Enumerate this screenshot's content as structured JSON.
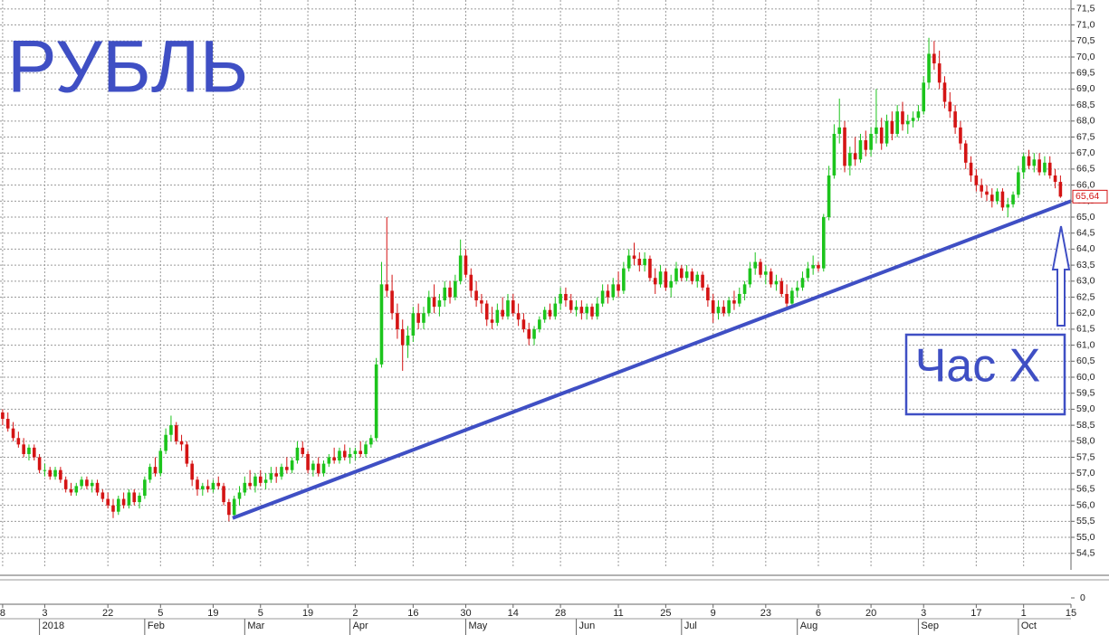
{
  "chart_data": {
    "type": "candlestick",
    "title": "РУБЛЬ",
    "annotation": "Час X",
    "up_color": "#1cc41c",
    "down_color": "#d41414",
    "line_color": "#3f4fc4",
    "grid": true,
    "last_price": {
      "value": 65.64,
      "label": "65,64"
    },
    "trendline": {
      "x": [
        43.7,
        203
      ],
      "values": [
        55.6,
        65.5
      ]
    },
    "xlim": [
      -0.5,
      203
    ],
    "ylim": [
      54.04,
      71.78
    ],
    "yticks": [
      {
        "value": 54.5,
        "label": "54,5"
      },
      {
        "value": 55,
        "label": "55,0"
      },
      {
        "value": 55.5,
        "label": "55,5"
      },
      {
        "value": 56,
        "label": "56,0"
      },
      {
        "value": 56.5,
        "label": "56,5"
      },
      {
        "value": 57,
        "label": "57,0"
      },
      {
        "value": 57.5,
        "label": "57,5"
      },
      {
        "value": 58,
        "label": "58,0"
      },
      {
        "value": 58.5,
        "label": "58,5"
      },
      {
        "value": 59,
        "label": "59,0"
      },
      {
        "value": 59.5,
        "label": "59,5"
      },
      {
        "value": 60,
        "label": "60,0"
      },
      {
        "value": 60.5,
        "label": "60,5"
      },
      {
        "value": 61,
        "label": "61,0"
      },
      {
        "value": 61.5,
        "label": "61,5"
      },
      {
        "value": 62,
        "label": "62,0"
      },
      {
        "value": 62.5,
        "label": "62,5"
      },
      {
        "value": 63,
        "label": "63,0"
      },
      {
        "value": 63.5,
        "label": "63,5"
      },
      {
        "value": 64,
        "label": "64,0"
      },
      {
        "value": 64.5,
        "label": "64,5"
      },
      {
        "value": 65,
        "label": "65,0"
      },
      {
        "value": 65.5,
        "label": "65,5"
      },
      {
        "value": 66,
        "label": "66,0"
      },
      {
        "value": 66.5,
        "label": "66,5"
      },
      {
        "value": 67,
        "label": "67,0"
      },
      {
        "value": 67.5,
        "label": "67,5"
      },
      {
        "value": 68,
        "label": "68,0"
      },
      {
        "value": 68.5,
        "label": "68,5"
      },
      {
        "value": 69,
        "label": "69,0"
      },
      {
        "value": 69.5,
        "label": "69,5"
      },
      {
        "value": 70,
        "label": "70,0"
      },
      {
        "value": 70.5,
        "label": "70,5"
      },
      {
        "value": 71,
        "label": "71,0"
      },
      {
        "value": 71.5,
        "label": "71,5"
      }
    ],
    "volume_yticks": [
      0
    ],
    "xticks": [
      {
        "value": 0,
        "label": "8"
      },
      {
        "value": 8,
        "label": "3"
      },
      {
        "value": 20,
        "label": "22"
      },
      {
        "value": 30,
        "label": "5"
      },
      {
        "value": 40,
        "label": "19"
      },
      {
        "value": 49,
        "label": "5"
      },
      {
        "value": 58,
        "label": "19"
      },
      {
        "value": 67,
        "label": "2"
      },
      {
        "value": 78,
        "label": "16"
      },
      {
        "value": 88,
        "label": "30"
      },
      {
        "value": 97,
        "label": "14"
      },
      {
        "value": 106,
        "label": "28"
      },
      {
        "value": 117,
        "label": "11"
      },
      {
        "value": 126,
        "label": "25"
      },
      {
        "value": 135,
        "label": "9"
      },
      {
        "value": 145,
        "label": "23"
      },
      {
        "value": 155,
        "label": "6"
      },
      {
        "value": 165,
        "label": "20"
      },
      {
        "value": 175,
        "label": "3"
      },
      {
        "value": 185,
        "label": "17"
      },
      {
        "value": 194,
        "label": "1"
      },
      {
        "value": 203,
        "label": "15"
      }
    ],
    "month_ticks": [
      {
        "value": 7,
        "label": "2018"
      },
      {
        "value": 27,
        "label": "Feb"
      },
      {
        "value": 46,
        "label": "Mar"
      },
      {
        "value": 66,
        "label": "Apr"
      },
      {
        "value": 88,
        "label": "May"
      },
      {
        "value": 109,
        "label": "Jun"
      },
      {
        "value": 129,
        "label": "Jul"
      },
      {
        "value": 151,
        "label": "Aug"
      },
      {
        "value": 174,
        "label": "Sep"
      },
      {
        "value": 193,
        "label": "Oct"
      }
    ],
    "candles": [
      [
        58.9,
        59.0,
        58.5,
        58.7
      ],
      [
        58.7,
        58.9,
        58.3,
        58.4
      ],
      [
        58.4,
        58.6,
        58.0,
        58.1
      ],
      [
        58.1,
        58.3,
        57.8,
        57.9
      ],
      [
        57.9,
        58.1,
        57.5,
        57.6
      ],
      [
        57.6,
        57.9,
        57.4,
        57.8
      ],
      [
        57.8,
        57.9,
        57.4,
        57.5
      ],
      [
        57.5,
        57.6,
        57.0,
        57.1
      ],
      [
        57.1,
        57.3,
        56.9,
        57.1
      ],
      [
        57.1,
        57.2,
        56.8,
        56.9
      ],
      [
        56.9,
        57.2,
        56.8,
        57.1
      ],
      [
        57.1,
        57.2,
        56.7,
        56.8
      ],
      [
        56.8,
        56.9,
        56.4,
        56.5
      ],
      [
        56.5,
        56.7,
        56.3,
        56.4
      ],
      [
        56.4,
        56.7,
        56.3,
        56.6
      ],
      [
        56.6,
        56.9,
        56.5,
        56.8
      ],
      [
        56.8,
        56.9,
        56.5,
        56.6
      ],
      [
        56.6,
        56.8,
        56.4,
        56.7
      ],
      [
        56.7,
        56.8,
        56.3,
        56.4
      ],
      [
        56.4,
        56.5,
        56.1,
        56.2
      ],
      [
        56.2,
        56.4,
        55.9,
        56.0
      ],
      [
        56.0,
        56.2,
        55.6,
        55.8
      ],
      [
        55.8,
        56.3,
        55.7,
        56.2
      ],
      [
        56.2,
        56.4,
        55.9,
        56.0
      ],
      [
        56.0,
        56.5,
        55.9,
        56.4
      ],
      [
        56.4,
        56.5,
        56.0,
        56.1
      ],
      [
        56.1,
        56.4,
        55.9,
        56.3
      ],
      [
        56.3,
        56.9,
        56.2,
        56.8
      ],
      [
        56.8,
        57.3,
        56.7,
        57.2
      ],
      [
        57.2,
        57.5,
        56.9,
        57.0
      ],
      [
        57.0,
        57.8,
        56.9,
        57.7
      ],
      [
        57.7,
        58.4,
        57.6,
        58.2
      ],
      [
        58.2,
        58.8,
        58.0,
        58.5
      ],
      [
        58.5,
        58.6,
        57.9,
        58.0
      ],
      [
        58.0,
        58.2,
        57.7,
        57.9
      ],
      [
        57.9,
        58.0,
        57.2,
        57.3
      ],
      [
        57.3,
        57.4,
        56.6,
        56.8
      ],
      [
        56.8,
        56.9,
        56.3,
        56.5
      ],
      [
        56.5,
        56.7,
        56.3,
        56.6
      ],
      [
        56.6,
        56.8,
        56.4,
        56.5
      ],
      [
        56.5,
        56.8,
        56.4,
        56.7
      ],
      [
        56.7,
        56.9,
        56.5,
        56.6
      ],
      [
        56.6,
        56.7,
        56.0,
        56.1
      ],
      [
        56.1,
        56.2,
        55.5,
        55.7
      ],
      [
        55.7,
        56.3,
        55.6,
        56.2
      ],
      [
        56.2,
        56.6,
        56.0,
        56.4
      ],
      [
        56.4,
        56.9,
        56.3,
        56.7
      ],
      [
        56.7,
        57.1,
        56.5,
        56.6
      ],
      [
        56.6,
        57.0,
        56.4,
        56.9
      ],
      [
        56.9,
        57.1,
        56.6,
        56.7
      ],
      [
        56.7,
        57.0,
        56.5,
        56.8
      ],
      [
        56.8,
        57.2,
        56.7,
        57.0
      ],
      [
        57.0,
        57.2,
        56.7,
        56.9
      ],
      [
        56.9,
        57.3,
        56.8,
        57.2
      ],
      [
        57.2,
        57.5,
        57.0,
        57.1
      ],
      [
        57.1,
        57.5,
        57.0,
        57.4
      ],
      [
        57.4,
        58.0,
        57.3,
        57.8
      ],
      [
        57.8,
        58.0,
        57.5,
        57.6
      ],
      [
        57.6,
        57.7,
        57.0,
        57.1
      ],
      [
        57.1,
        57.4,
        56.9,
        57.3
      ],
      [
        57.3,
        57.5,
        56.9,
        57.0
      ],
      [
        57.0,
        57.4,
        56.9,
        57.3
      ],
      [
        57.3,
        57.6,
        57.2,
        57.5
      ],
      [
        57.5,
        57.8,
        57.3,
        57.4
      ],
      [
        57.4,
        57.8,
        57.3,
        57.7
      ],
      [
        57.7,
        57.9,
        57.4,
        57.5
      ],
      [
        57.5,
        57.8,
        57.3,
        57.6
      ],
      [
        57.6,
        57.8,
        57.4,
        57.7
      ],
      [
        57.7,
        58.0,
        57.5,
        57.6
      ],
      [
        57.6,
        58.0,
        57.5,
        57.9
      ],
      [
        57.9,
        58.2,
        57.8,
        58.1
      ],
      [
        58.1,
        60.6,
        58.0,
        60.4
      ],
      [
        60.4,
        63.6,
        60.3,
        62.9
      ],
      [
        62.9,
        65.0,
        62.5,
        62.7
      ],
      [
        62.7,
        63.2,
        61.8,
        62.0
      ],
      [
        62.0,
        62.3,
        61.2,
        61.5
      ],
      [
        61.5,
        61.8,
        60.2,
        61.0
      ],
      [
        61.0,
        61.6,
        60.6,
        61.3
      ],
      [
        61.3,
        62.2,
        61.1,
        62.0
      ],
      [
        62.0,
        62.3,
        61.5,
        61.7
      ],
      [
        61.7,
        62.2,
        61.5,
        62.0
      ],
      [
        62.0,
        62.7,
        61.9,
        62.5
      ],
      [
        62.5,
        62.9,
        62.0,
        62.2
      ],
      [
        62.2,
        62.6,
        61.9,
        62.4
      ],
      [
        62.4,
        63.0,
        62.2,
        62.8
      ],
      [
        62.8,
        63.0,
        62.3,
        62.5
      ],
      [
        62.5,
        63.2,
        62.4,
        63.0
      ],
      [
        63.0,
        64.3,
        62.9,
        63.8
      ],
      [
        63.8,
        64.0,
        63.1,
        63.2
      ],
      [
        63.2,
        63.4,
        62.5,
        62.7
      ],
      [
        62.7,
        63.0,
        62.2,
        62.4
      ],
      [
        62.4,
        62.6,
        62.0,
        62.3
      ],
      [
        62.3,
        62.4,
        61.6,
        61.8
      ],
      [
        61.8,
        62.2,
        61.5,
        61.7
      ],
      [
        61.7,
        62.3,
        61.6,
        62.1
      ],
      [
        62.1,
        62.5,
        61.8,
        61.9
      ],
      [
        61.9,
        62.6,
        61.8,
        62.4
      ],
      [
        62.4,
        62.6,
        61.9,
        62.0
      ],
      [
        62.0,
        62.3,
        61.6,
        61.8
      ],
      [
        61.8,
        62.0,
        61.4,
        61.5
      ],
      [
        61.5,
        61.7,
        61.0,
        61.2
      ],
      [
        61.2,
        61.6,
        61.0,
        61.5
      ],
      [
        61.5,
        61.9,
        61.4,
        61.8
      ],
      [
        61.8,
        62.2,
        61.7,
        62.1
      ],
      [
        62.1,
        62.3,
        61.8,
        61.9
      ],
      [
        61.9,
        62.5,
        61.8,
        62.3
      ],
      [
        62.3,
        62.8,
        62.1,
        62.6
      ],
      [
        62.6,
        62.8,
        62.2,
        62.4
      ],
      [
        62.4,
        62.6,
        62.0,
        62.1
      ],
      [
        62.1,
        62.4,
        61.9,
        62.2
      ],
      [
        62.2,
        62.4,
        61.8,
        62.0
      ],
      [
        62.0,
        62.3,
        61.8,
        62.2
      ],
      [
        62.2,
        62.3,
        61.8,
        61.9
      ],
      [
        61.9,
        62.5,
        61.8,
        62.3
      ],
      [
        62.3,
        62.9,
        62.2,
        62.7
      ],
      [
        62.7,
        62.9,
        62.3,
        62.5
      ],
      [
        62.5,
        63.1,
        62.4,
        62.9
      ],
      [
        62.9,
        63.3,
        62.5,
        62.7
      ],
      [
        62.7,
        63.6,
        62.6,
        63.4
      ],
      [
        63.4,
        64.0,
        63.3,
        63.8
      ],
      [
        63.8,
        64.2,
        63.5,
        63.7
      ],
      [
        63.7,
        63.9,
        63.3,
        63.5
      ],
      [
        63.5,
        63.9,
        63.3,
        63.7
      ],
      [
        63.7,
        63.8,
        63.0,
        63.1
      ],
      [
        63.1,
        63.4,
        62.6,
        62.9
      ],
      [
        62.9,
        63.5,
        62.8,
        63.3
      ],
      [
        63.3,
        63.4,
        62.7,
        62.8
      ],
      [
        62.8,
        63.2,
        62.5,
        63.0
      ],
      [
        63.0,
        63.6,
        62.9,
        63.4
      ],
      [
        63.4,
        63.5,
        63.0,
        63.1
      ],
      [
        63.1,
        63.5,
        63.0,
        63.3
      ],
      [
        63.3,
        63.4,
        62.9,
        63.0
      ],
      [
        63.0,
        63.3,
        62.8,
        63.2
      ],
      [
        63.2,
        63.3,
        62.7,
        62.8
      ],
      [
        62.8,
        62.9,
        62.2,
        62.4
      ],
      [
        62.4,
        62.6,
        61.7,
        62.0
      ],
      [
        62.0,
        62.4,
        61.8,
        62.2
      ],
      [
        62.2,
        62.4,
        61.9,
        62.0
      ],
      [
        62.0,
        62.5,
        61.9,
        62.4
      ],
      [
        62.4,
        62.7,
        62.1,
        62.3
      ],
      [
        62.3,
        62.8,
        62.2,
        62.6
      ],
      [
        62.6,
        63.0,
        62.4,
        62.9
      ],
      [
        62.9,
        63.6,
        62.8,
        63.4
      ],
      [
        63.4,
        63.9,
        63.2,
        63.6
      ],
      [
        63.6,
        63.7,
        63.1,
        63.2
      ],
      [
        63.2,
        63.5,
        62.9,
        63.3
      ],
      [
        63.3,
        63.4,
        62.8,
        62.9
      ],
      [
        62.9,
        63.2,
        62.7,
        63.0
      ],
      [
        63.0,
        63.1,
        62.5,
        62.6
      ],
      [
        62.6,
        62.9,
        62.1,
        62.3
      ],
      [
        62.3,
        62.8,
        62.2,
        62.7
      ],
      [
        62.7,
        63.0,
        62.5,
        62.8
      ],
      [
        62.8,
        63.3,
        62.7,
        63.1
      ],
      [
        63.1,
        63.6,
        63.0,
        63.4
      ],
      [
        63.4,
        63.8,
        63.2,
        63.5
      ],
      [
        63.5,
        63.6,
        63.3,
        63.4
      ],
      [
        63.4,
        65.1,
        63.3,
        65.0
      ],
      [
        65.0,
        66.6,
        64.9,
        66.3
      ],
      [
        66.3,
        67.9,
        66.2,
        67.6
      ],
      [
        67.6,
        68.7,
        67.3,
        67.8
      ],
      [
        67.8,
        68.0,
        66.4,
        66.6
      ],
      [
        66.6,
        67.2,
        66.3,
        67.0
      ],
      [
        67.0,
        67.5,
        66.6,
        66.8
      ],
      [
        66.8,
        67.6,
        66.7,
        67.4
      ],
      [
        67.4,
        67.7,
        66.9,
        67.1
      ],
      [
        67.1,
        67.8,
        66.9,
        67.6
      ],
      [
        67.6,
        69.0,
        67.3,
        67.8
      ],
      [
        67.8,
        68.1,
        67.1,
        67.3
      ],
      [
        67.3,
        68.2,
        67.2,
        68.0
      ],
      [
        68.0,
        68.3,
        67.4,
        67.6
      ],
      [
        67.6,
        68.5,
        67.5,
        68.3
      ],
      [
        68.3,
        68.6,
        67.7,
        67.9
      ],
      [
        67.9,
        68.2,
        67.6,
        68.0
      ],
      [
        68.0,
        68.3,
        67.8,
        68.1
      ],
      [
        68.1,
        68.5,
        68.0,
        68.3
      ],
      [
        68.3,
        69.4,
        68.2,
        69.2
      ],
      [
        69.2,
        70.6,
        69.0,
        70.1
      ],
      [
        70.1,
        70.5,
        69.6,
        69.8
      ],
      [
        69.8,
        70.2,
        69.0,
        69.2
      ],
      [
        69.2,
        69.4,
        68.4,
        68.6
      ],
      [
        68.6,
        68.9,
        68.1,
        68.3
      ],
      [
        68.3,
        68.5,
        67.6,
        67.8
      ],
      [
        67.8,
        68.0,
        67.1,
        67.3
      ],
      [
        67.3,
        67.4,
        66.5,
        66.7
      ],
      [
        66.7,
        66.9,
        66.1,
        66.3
      ],
      [
        66.3,
        66.5,
        65.8,
        66.0
      ],
      [
        66.0,
        66.2,
        65.6,
        65.8
      ],
      [
        65.8,
        66.0,
        65.5,
        65.7
      ],
      [
        65.7,
        65.9,
        65.3,
        65.5
      ],
      [
        65.5,
        65.9,
        65.4,
        65.8
      ],
      [
        65.8,
        65.9,
        65.2,
        65.3
      ],
      [
        65.3,
        65.6,
        65.0,
        65.4
      ],
      [
        65.4,
        65.8,
        65.3,
        65.7
      ],
      [
        65.7,
        66.6,
        65.6,
        66.4
      ],
      [
        66.4,
        67.0,
        66.2,
        66.9
      ],
      [
        66.9,
        67.1,
        66.5,
        66.6
      ],
      [
        66.6,
        67.0,
        66.4,
        66.8
      ],
      [
        66.8,
        67.0,
        66.3,
        66.4
      ],
      [
        66.4,
        66.9,
        66.3,
        66.7
      ],
      [
        66.7,
        66.9,
        66.2,
        66.3
      ],
      [
        66.3,
        66.5,
        65.9,
        66.1
      ],
      [
        66.1,
        66.3,
        65.6,
        65.64
      ]
    ]
  }
}
